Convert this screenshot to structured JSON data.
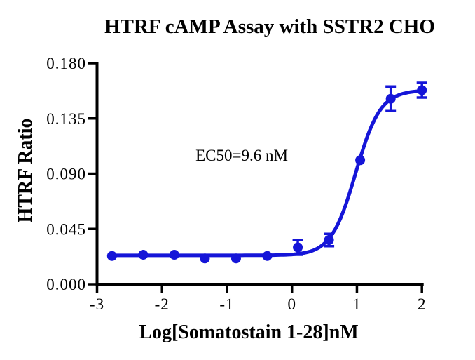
{
  "figure": {
    "background_color": "#ffffff"
  },
  "chart_data": {
    "type": "scatter",
    "subtype": "dose-response-curve",
    "title": "HTRF cAMP Assay with SSTR2 CHO",
    "xlabel": "Log[Somatostain 1-28]nM",
    "ylabel": "HTRF Ratio",
    "annotation": {
      "text": "EC50=9.6 nM",
      "x": -0.78,
      "y": 0.104
    },
    "xlim": [
      -3,
      2
    ],
    "ylim": [
      0,
      0.18
    ],
    "grid": false,
    "legend": null,
    "x_ticks": [
      -3,
      -2,
      -1,
      0,
      1,
      2
    ],
    "x_tick_labels": [
      "-3",
      "-2",
      "-1",
      "0",
      "1",
      "2"
    ],
    "y_ticks": [
      0,
      0.045,
      0.09,
      0.135,
      0.18
    ],
    "y_tick_labels": [
      "0.000",
      "0.045",
      "0.090",
      "0.135",
      "0.180"
    ],
    "colors": {
      "curve": "#1515d8",
      "marker": "#1515d8",
      "axis": "#000000"
    },
    "series": [
      {
        "name": "Somatostatin 1-28",
        "marker": "circle",
        "points": [
          {
            "x": -2.77,
            "y": 0.023,
            "err": 0
          },
          {
            "x": -2.29,
            "y": 0.024,
            "err": 0
          },
          {
            "x": -1.81,
            "y": 0.024,
            "err": 0
          },
          {
            "x": -1.34,
            "y": 0.021,
            "err": 0
          },
          {
            "x": -0.86,
            "y": 0.021,
            "err": 0
          },
          {
            "x": -0.38,
            "y": 0.023,
            "err": 0
          },
          {
            "x": 0.09,
            "y": 0.03,
            "err": 0.006
          },
          {
            "x": 0.57,
            "y": 0.036,
            "err": 0.005
          },
          {
            "x": 1.05,
            "y": 0.101,
            "err": 0
          },
          {
            "x": 1.52,
            "y": 0.151,
            "err": 0.01
          },
          {
            "x": 2.0,
            "y": 0.158,
            "err": 0.006
          }
        ],
        "fit": {
          "model": "4PL",
          "bottom": 0.0235,
          "top": 0.158,
          "logEC50": 0.982,
          "hill_slope": 2.3,
          "ec50_nM": 9.6
        }
      }
    ]
  }
}
